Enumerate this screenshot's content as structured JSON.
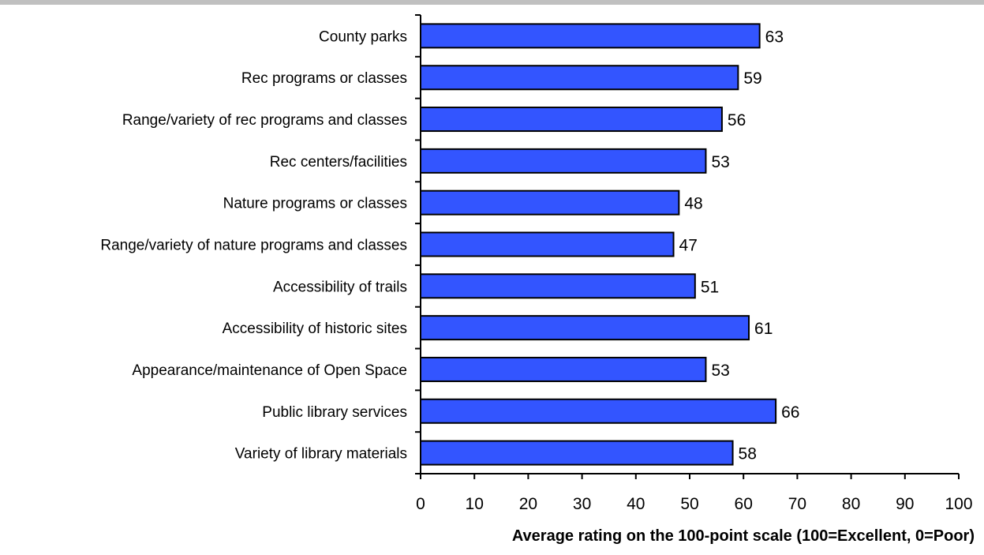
{
  "chart_data": {
    "type": "bar",
    "orientation": "horizontal",
    "title": "",
    "xlabel": "Average rating on the 100-point scale (100=Excellent, 0=Poor)",
    "ylabel": "",
    "categories": [
      "County parks",
      "Rec programs or classes",
      "Range/variety of rec programs and classes",
      "Rec centers/facilities",
      "Nature programs or classes",
      "Range/variety of nature programs and classes",
      "Accessibility of trails",
      "Accessibility of historic sites",
      "Appearance/maintenance of Open Space",
      "Public library services",
      "Variety of library materials"
    ],
    "values": [
      63,
      59,
      56,
      53,
      48,
      47,
      51,
      61,
      53,
      66,
      58
    ],
    "xlim": [
      0,
      100
    ],
    "xticks": [
      "0",
      "10",
      "20",
      "30",
      "40",
      "50",
      "60",
      "70",
      "80",
      "90",
      "100"
    ],
    "bar_color": "#3355ff",
    "grid": false,
    "legend": "none"
  }
}
